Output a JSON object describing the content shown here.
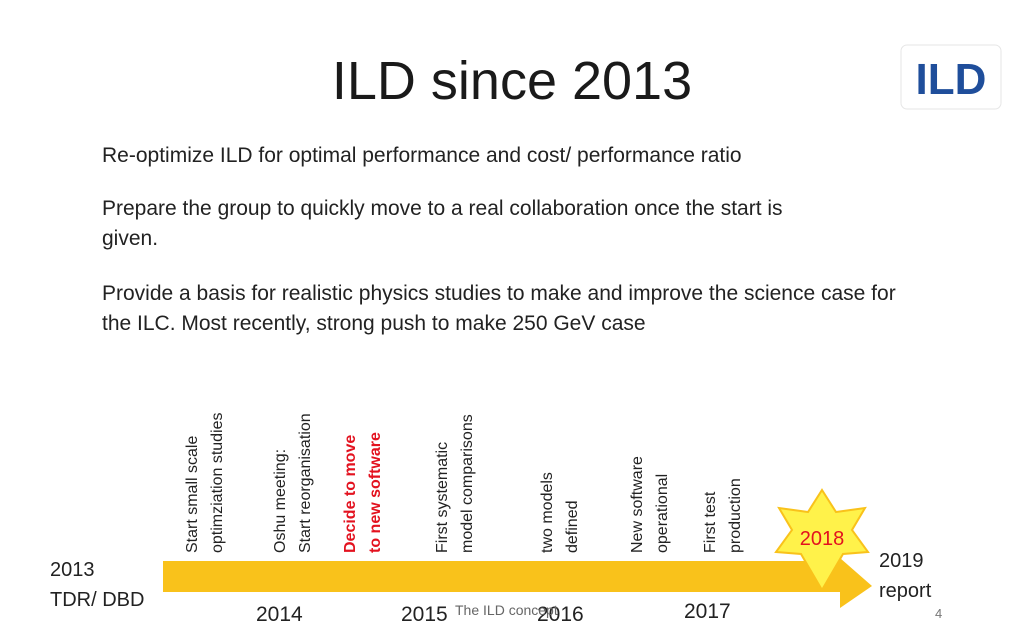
{
  "title": "ILD since 2013",
  "logo": {
    "text": "ILD"
  },
  "bullets": [
    "Re-optimize ILD for optimal performance and cost/ performance ratio",
    "Prepare the group to quickly move to a real collaboration once the start is given.",
    "Provide a basis for realistic physics studies to make and improve the science case for the ILC. Most recently, strong push to make 250 GeV case"
  ],
  "milestones": [
    {
      "line1": "Start small scale",
      "line2": "optimziation studies"
    },
    {
      "line1": "Oshu meeting:",
      "line2": "Start reorganisation"
    },
    {
      "line1": "Decide to move",
      "line2": "to new software"
    },
    {
      "line1": "First systematic",
      "line2": "model comparisons"
    },
    {
      "line1": "two models",
      "line2": "defined"
    },
    {
      "line1": "New software",
      "line2": "operational"
    },
    {
      "line1": "First test",
      "line2": "production"
    }
  ],
  "timeline": {
    "start": {
      "line1": "2013",
      "line2": "TDR/ DBD"
    },
    "years": [
      "2014",
      "2015",
      "2016",
      "2017"
    ],
    "highlight_year": "2018",
    "end": {
      "line1": "2019",
      "line2": "report"
    }
  },
  "colors": {
    "bar": "#f9c21b",
    "star": "#fff24a",
    "star_stroke": "#f9c21b",
    "highlight_text": "#e3121f",
    "logo_blue": "#1f4e9b"
  },
  "footer": "The ILD concept",
  "page_number": "4"
}
